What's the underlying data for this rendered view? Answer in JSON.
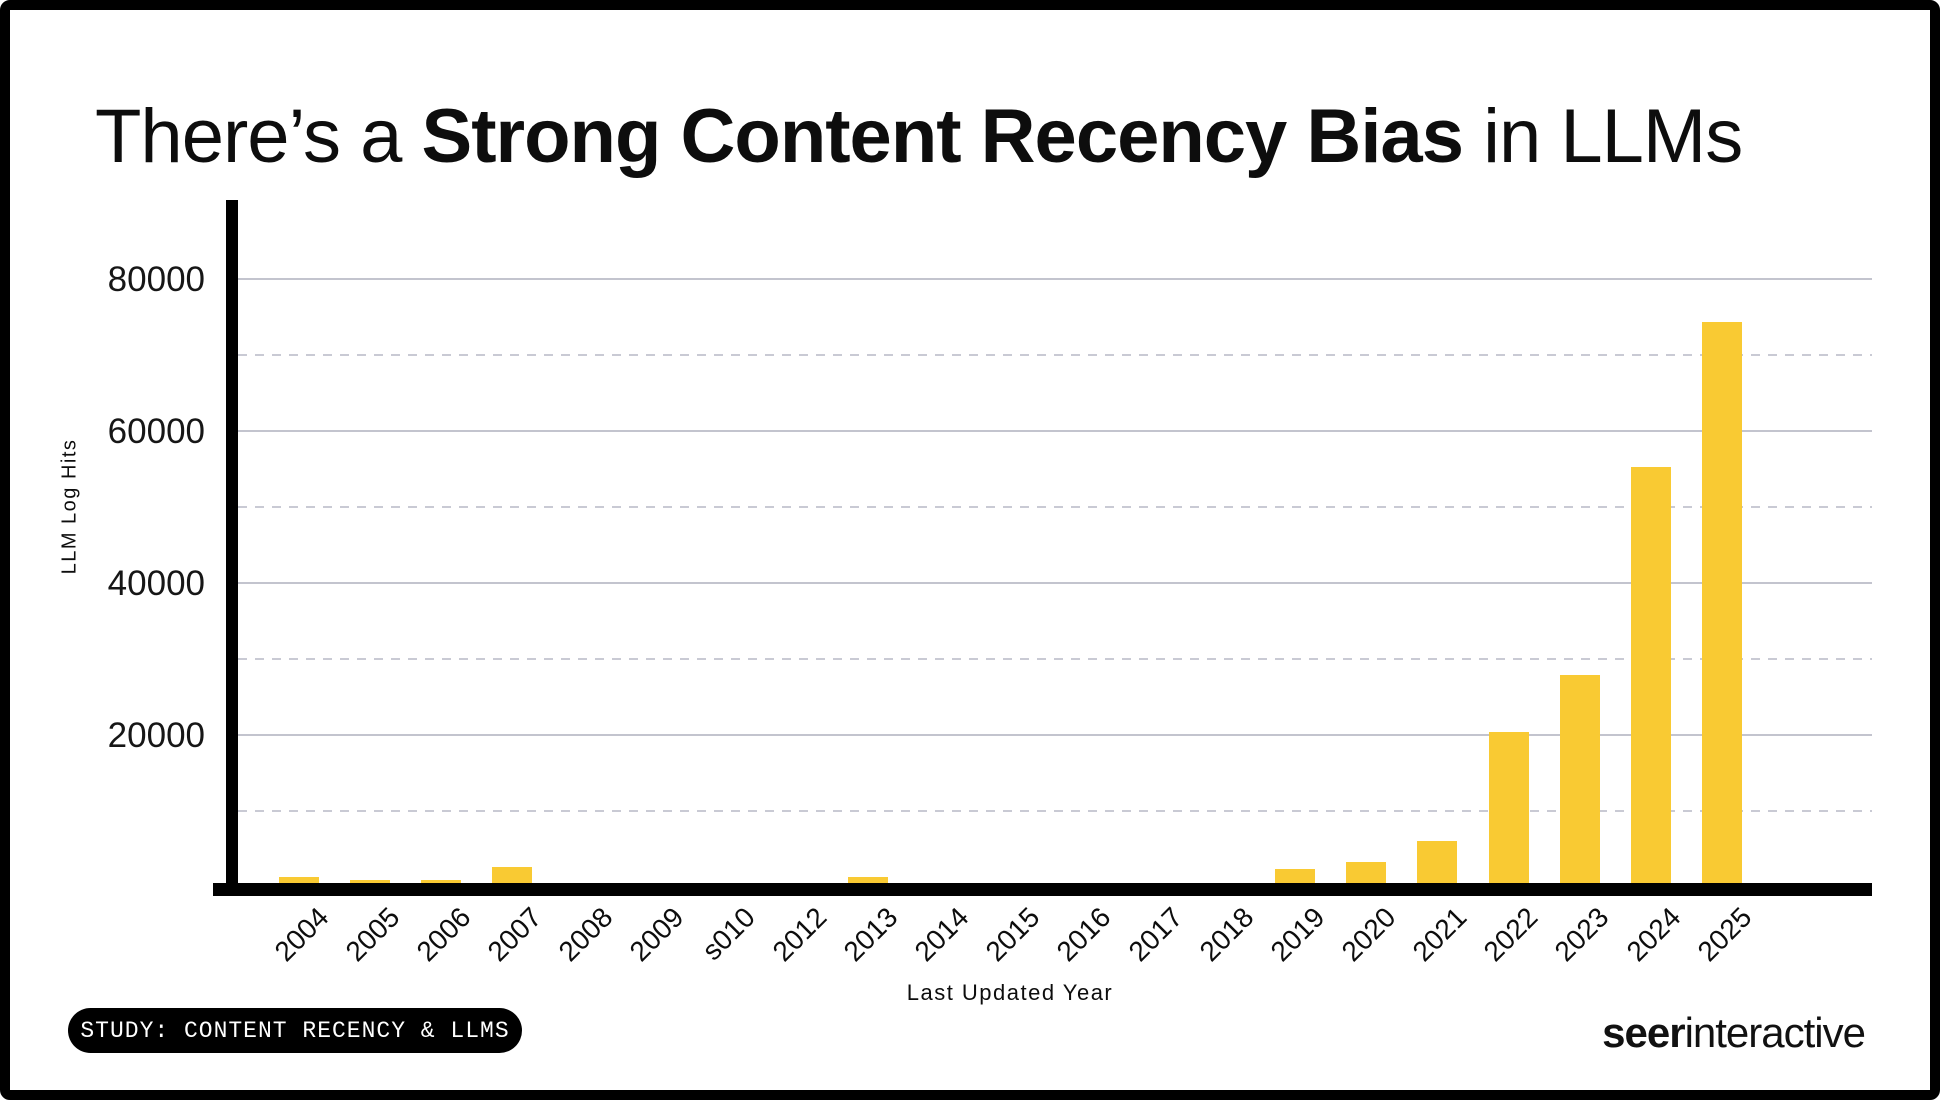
{
  "title": {
    "prefix": "There’s a ",
    "emphasis": "Strong Content Recency Bias",
    "suffix": " in LLMs"
  },
  "chart_data": {
    "type": "bar",
    "categories": [
      "2004",
      "2005",
      "2006",
      "2007",
      "2008",
      "2009",
      "s010",
      "2012",
      "2013",
      "2014",
      "2015",
      "2016",
      "2017",
      "2018",
      "2019",
      "2020",
      "2021",
      "2022",
      "2023",
      "2024",
      "2025"
    ],
    "values": [
      1300,
      900,
      900,
      2600,
      0,
      0,
      0,
      0,
      1300,
      0,
      0,
      0,
      0,
      0,
      2400,
      3300,
      6000,
      20400,
      27900,
      55300,
      74300
    ],
    "title": "There’s a Strong Content Recency Bias in LLMs",
    "xlabel": "Last Updated Year",
    "ylabel": "LLM Log Hits",
    "ylim": [
      0,
      90000
    ],
    "ytick_values": [
      20000,
      40000,
      60000,
      80000
    ],
    "ytick_labels": [
      "20000",
      "40000",
      "60000",
      "80000"
    ],
    "minor_gridlines": [
      10000,
      30000,
      50000,
      70000
    ],
    "grid": "solid major horizontal lines, dashed minor horizontal lines",
    "legend": "none",
    "bar_color": "#F9CA33"
  },
  "footer": {
    "badge_label": "STUDY: CONTENT RECENCY & LLMS",
    "brand_bold": "seer",
    "brand_regular": "interactive"
  },
  "colors": {
    "background": "#FFFFFF",
    "frame": "#000000",
    "bar": "#F9CA33",
    "gridline": "#C3C4CE",
    "axis": "#000000",
    "text": "#0D0D0D",
    "badge_bg": "#000000",
    "badge_text": "#FFFFFF"
  }
}
